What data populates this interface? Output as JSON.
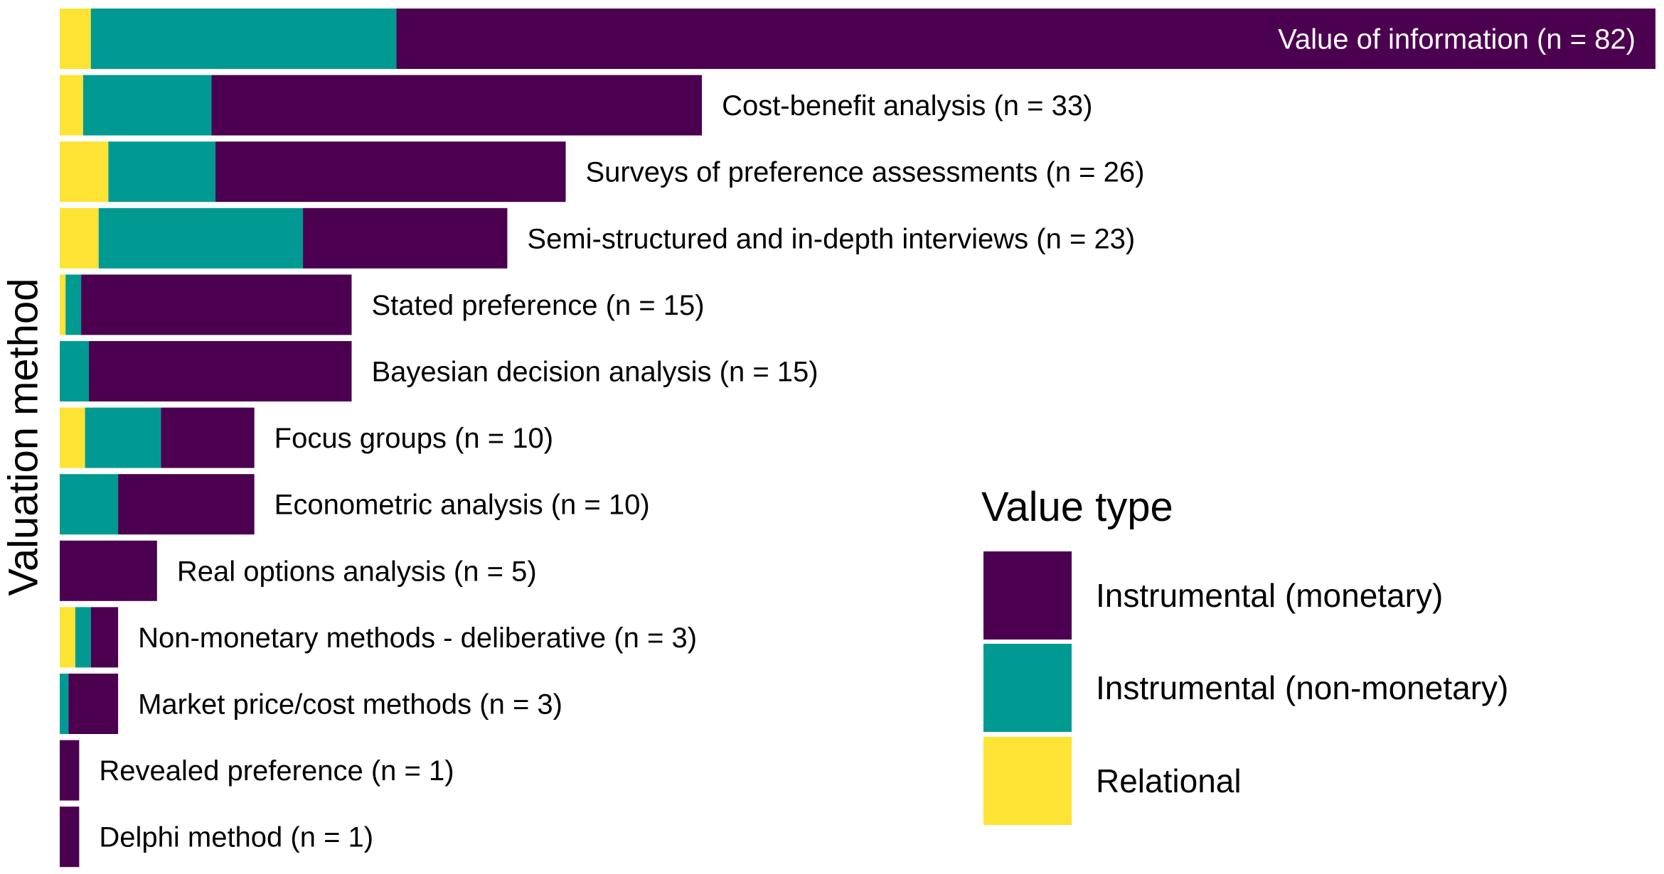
{
  "chart_data": {
    "type": "bar",
    "orientation": "horizontal",
    "stacked": true,
    "ylabel": "Valuation method",
    "xlabel": "",
    "legend": {
      "title": "Value type",
      "placement": "bottom-right"
    },
    "series_order": [
      "Instrumental (monetary)",
      "Instrumental (non-monetary)",
      "Relational"
    ],
    "colors": {
      "Instrumental (monetary)": "#4c0050",
      "Instrumental (non-monetary)": "#009a93",
      "Relational": "#fde333"
    },
    "rows": [
      {
        "label": "Value of information (n = 82)",
        "n": 82,
        "relational": 1.6,
        "nonmonetary": 15.7,
        "monetary": 64.7
      },
      {
        "label": "Cost-benefit analysis (n = 33)",
        "n": 33,
        "relational": 1.2,
        "nonmonetary": 6.6,
        "monetary": 25.2
      },
      {
        "label": "Surveys of preference assessments (n = 26)",
        "n": 26,
        "relational": 2.5,
        "nonmonetary": 5.5,
        "monetary": 18.0
      },
      {
        "label": "Semi-structured and in-depth interviews (n = 23)",
        "n": 23,
        "relational": 2.0,
        "nonmonetary": 10.5,
        "monetary": 10.5
      },
      {
        "label": "Stated preference (n = 15)",
        "n": 15,
        "relational": 0.3,
        "nonmonetary": 0.8,
        "monetary": 13.9
      },
      {
        "label": "Bayesian decision analysis (n = 15)",
        "n": 15,
        "relational": 0,
        "nonmonetary": 1.5,
        "monetary": 13.5
      },
      {
        "label": "Focus groups (n = 10)",
        "n": 10,
        "relational": 1.3,
        "nonmonetary": 3.9,
        "monetary": 4.8
      },
      {
        "label": "Econometric analysis (n = 10)",
        "n": 10,
        "relational": 0,
        "nonmonetary": 3.0,
        "monetary": 7.0
      },
      {
        "label": "Real options analysis (n = 5)",
        "n": 5,
        "relational": 0,
        "nonmonetary": 0,
        "monetary": 5
      },
      {
        "label": "Non-monetary methods - deliberative (n = 3)",
        "n": 3,
        "relational": 0.8,
        "nonmonetary": 0.8,
        "monetary": 1.4
      },
      {
        "label": "Market price/cost methods (n = 3)",
        "n": 3,
        "relational": 0,
        "nonmonetary": 0.45,
        "monetary": 2.55
      },
      {
        "label": "Revealed preference (n = 1)",
        "n": 1,
        "relational": 0,
        "nonmonetary": 0,
        "monetary": 1
      },
      {
        "label": "Delphi method (n = 1)",
        "n": 1,
        "relational": 0,
        "nonmonetary": 0,
        "monetary": 1
      }
    ]
  }
}
